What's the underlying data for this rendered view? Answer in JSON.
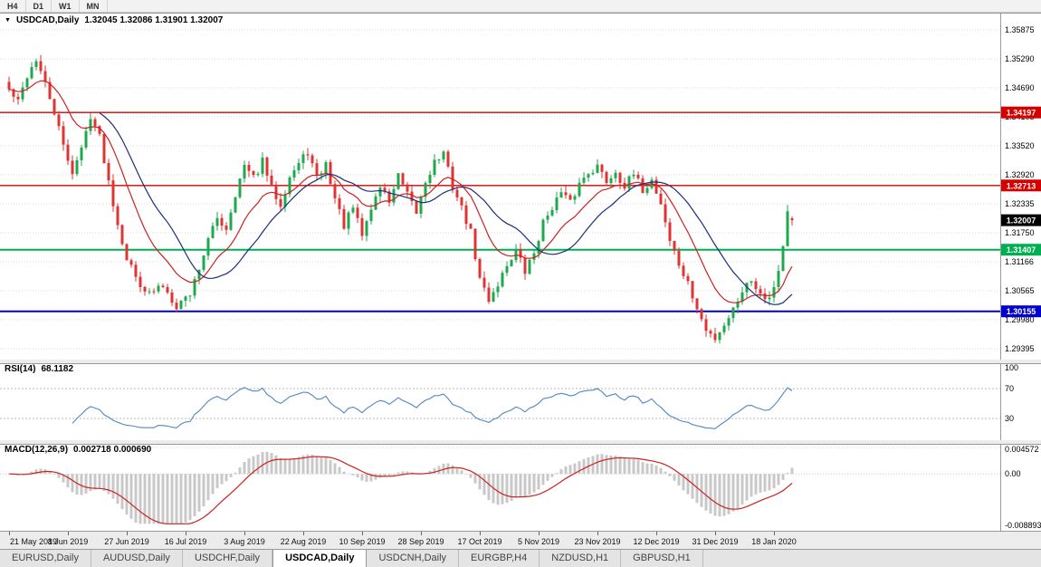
{
  "toolbar": {
    "buttons": [
      "H4",
      "D1",
      "W1",
      "MN"
    ]
  },
  "main_chart": {
    "symbol": "USDCAD,Daily",
    "ohlc_text": "1.32045 1.32086 1.31901 1.32007"
  },
  "rsi": {
    "label": "RSI(14)",
    "value": "68.1182"
  },
  "macd": {
    "label": "MACD(12,26,9)",
    "values": "0.002718 0.000690"
  },
  "tab_bar": {
    "tabs": [
      {
        "label": "EURUSD,Daily",
        "active": false
      },
      {
        "label": "AUDUSD,Daily",
        "active": false
      },
      {
        "label": "USDCHF,Daily",
        "active": false
      },
      {
        "label": "USDCAD,Daily",
        "active": true
      },
      {
        "label": "USDCNH,Daily",
        "active": false
      },
      {
        "label": "EURGBP,H4",
        "active": false
      },
      {
        "label": "NZDUSD,H1",
        "active": false
      },
      {
        "label": "GBPUSD,H1",
        "active": false
      }
    ]
  },
  "chart_data": {
    "type": "candlestick",
    "title": "USDCAD,Daily",
    "current_ohlc": {
      "open": 1.32045,
      "high": 1.32086,
      "low": 1.31901,
      "close": 1.32007
    },
    "current_label": "1.32007",
    "candle_count": 174,
    "seed": 42,
    "up_color": "#1fa94e",
    "down_color": "#e03333",
    "ma_fast": {
      "period": 13,
      "type": "ema",
      "color": "#cc2222"
    },
    "ma_slow": {
      "period": 21,
      "type": "sma",
      "color": "#1c2f7a"
    },
    "y_ticks": [
      "1.35875",
      "1.35290",
      "1.34690",
      "1.34105",
      "1.33520",
      "1.32920",
      "1.32335",
      "1.31750",
      "1.31166",
      "1.30565",
      "1.29980",
      "1.29395"
    ],
    "y_max": 1.35875,
    "y_min": 1.29395,
    "x_labels": [
      "21 May 2019",
      "8 Jun 2019",
      "27 Jun 2019",
      "16 Jul 2019",
      "3 Aug 2019",
      "22 Aug 2019",
      "10 Sep 2019",
      "28 Sep 2019",
      "17 Oct 2019",
      "5 Nov 2019",
      "23 Nov 2019",
      "12 Dec 2019",
      "31 Dec 2019",
      "18 Jan 2020"
    ],
    "label_interval": 13,
    "close_anchors": [
      [
        0,
        1.3465
      ],
      [
        2,
        1.344
      ],
      [
        4,
        1.3495
      ],
      [
        6,
        1.3528
      ],
      [
        8,
        1.3475
      ],
      [
        10,
        1.342
      ],
      [
        12,
        1.335
      ],
      [
        14,
        1.33
      ],
      [
        16,
        1.3345
      ],
      [
        18,
        1.3415
      ],
      [
        20,
        1.337
      ],
      [
        22,
        1.328
      ],
      [
        24,
        1.3195
      ],
      [
        26,
        1.3125
      ],
      [
        28,
        1.3085
      ],
      [
        31,
        1.305
      ],
      [
        34,
        1.3068
      ],
      [
        37,
        1.3028
      ],
      [
        40,
        1.3052
      ],
      [
        42,
        1.3105
      ],
      [
        44,
        1.316
      ],
      [
        46,
        1.3205
      ],
      [
        48,
        1.3185
      ],
      [
        50,
        1.3255
      ],
      [
        52,
        1.331
      ],
      [
        54,
        1.3285
      ],
      [
        56,
        1.332
      ],
      [
        58,
        1.3265
      ],
      [
        60,
        1.3235
      ],
      [
        62,
        1.329
      ],
      [
        64,
        1.3315
      ],
      [
        66,
        1.334
      ],
      [
        68,
        1.3285
      ],
      [
        70,
        1.3315
      ],
      [
        72,
        1.3245
      ],
      [
        74,
        1.319
      ],
      [
        76,
        1.3225
      ],
      [
        78,
        1.317
      ],
      [
        80,
        1.3225
      ],
      [
        82,
        1.327
      ],
      [
        84,
        1.324
      ],
      [
        86,
        1.329
      ],
      [
        88,
        1.325
      ],
      [
        90,
        1.3215
      ],
      [
        92,
        1.328
      ],
      [
        94,
        1.332
      ],
      [
        96,
        1.3335
      ],
      [
        98,
        1.327
      ],
      [
        100,
        1.3225
      ],
      [
        102,
        1.3175
      ],
      [
        104,
        1.308
      ],
      [
        106,
        1.304
      ],
      [
        108,
        1.3072
      ],
      [
        110,
        1.311
      ],
      [
        112,
        1.314
      ],
      [
        114,
        1.3095
      ],
      [
        116,
        1.3135
      ],
      [
        118,
        1.3195
      ],
      [
        120,
        1.323
      ],
      [
        122,
        1.3255
      ],
      [
        124,
        1.3235
      ],
      [
        126,
        1.3275
      ],
      [
        128,
        1.33
      ],
      [
        130,
        1.331
      ],
      [
        132,
        1.328
      ],
      [
        134,
        1.33
      ],
      [
        136,
        1.327
      ],
      [
        138,
        1.3292
      ],
      [
        140,
        1.3262
      ],
      [
        142,
        1.3282
      ],
      [
        144,
        1.3235
      ],
      [
        146,
        1.316
      ],
      [
        148,
        1.311
      ],
      [
        150,
        1.307
      ],
      [
        152,
        1.302
      ],
      [
        154,
        1.2975
      ],
      [
        156,
        1.2962
      ],
      [
        158,
        1.299
      ],
      [
        160,
        1.302
      ],
      [
        162,
        1.306
      ],
      [
        164,
        1.308
      ],
      [
        166,
        1.3055
      ],
      [
        168,
        1.3042
      ],
      [
        170,
        1.3098
      ],
      [
        171,
        1.315
      ],
      [
        172,
        1.3215
      ],
      [
        173,
        1.32007
      ]
    ],
    "hlines": [
      {
        "price": 1.34197,
        "color": "#d40000",
        "width": 1.4,
        "label": "1.34197"
      },
      {
        "price": 1.32713,
        "color": "#d40000",
        "width": 1.4,
        "label": "1.32713"
      },
      {
        "price": 1.31407,
        "color": "#00b050",
        "width": 2,
        "label": "1.31407"
      },
      {
        "price": 1.30155,
        "color": "#0000cc",
        "width": 2,
        "label": "1.30155"
      }
    ],
    "rsi": {
      "period": 14,
      "levels": [
        "100",
        "70",
        "30"
      ],
      "level_values": [
        100,
        70,
        30
      ],
      "dotted_levels": [
        70,
        30
      ],
      "color": "#4f86c6",
      "last_value": 68.1182
    },
    "macd": {
      "fast": 12,
      "slow": 26,
      "signal": 9,
      "axis_max": 0.004572,
      "axis_min": -0.008893,
      "axis_labels": [
        "0.004572",
        "0.00",
        "-0.008893"
      ],
      "hist_color": "#c8c8c8",
      "signal_color": "#cc2222",
      "last_main": 0.002718,
      "last_signal": 0.00069
    }
  }
}
